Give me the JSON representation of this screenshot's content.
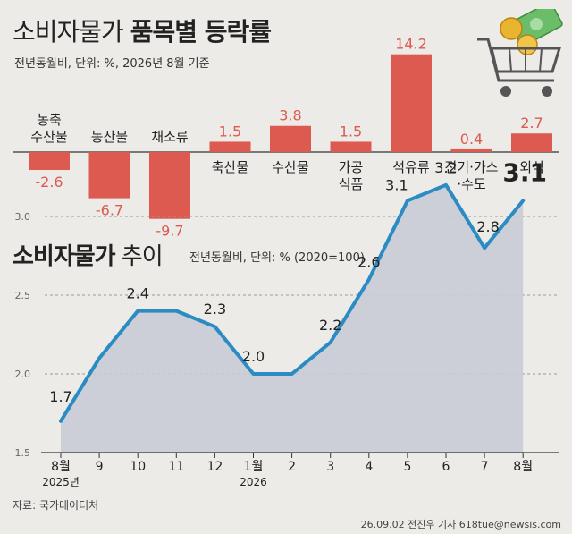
{
  "titles": {
    "main_light": "소비자물가",
    "main_bold": "품목별 등락률",
    "main_subtitle": "전년동월비, 단위: %, 2026년 8월 기준",
    "trend_bold": "소비자물가",
    "trend_light": "추이",
    "trend_subtitle": "전년동월비, 단위: % (2020=100)"
  },
  "source": "자료: 국가데이터처",
  "credit": "26.09.02 전진우 기자 618tue@newsis.com",
  "colors": {
    "bar": "#dd5a50",
    "line": "#2b8cc4",
    "area": "#c9ccd6",
    "bg": "#ecebe8"
  },
  "icons": [
    "shopping-cart-icon",
    "coin-icon",
    "banknote-icon"
  ],
  "chart_data": [
    {
      "type": "bar",
      "title": "소비자물가 품목별 등락률",
      "categories": [
        [
          "농축",
          "수산물"
        ],
        [
          "농산물"
        ],
        [
          "채소류"
        ],
        [
          "축산물"
        ],
        [
          "수산물"
        ],
        [
          "가공",
          "식품"
        ],
        [
          "석유류"
        ],
        [
          "전기·가스",
          "·수도"
        ],
        [
          "외식"
        ]
      ],
      "values": [
        -2.6,
        -6.7,
        -9.7,
        1.5,
        3.8,
        1.5,
        14.2,
        0.4,
        2.7
      ],
      "value_labels": [
        "-2.6",
        "-6.7",
        "-9.7",
        "1.5",
        "3.8",
        "1.5",
        "14.2",
        "0.4",
        "2.7"
      ]
    },
    {
      "type": "area",
      "title": "소비자물가 추이",
      "x": [
        [
          "8월",
          "2025년"
        ],
        [
          "9"
        ],
        [
          "10"
        ],
        [
          "11"
        ],
        [
          "12"
        ],
        [
          "1월",
          "2026"
        ],
        [
          "2"
        ],
        [
          "3"
        ],
        [
          "4"
        ],
        [
          "5"
        ],
        [
          "6"
        ],
        [
          "7"
        ],
        [
          "8월"
        ]
      ],
      "values": [
        1.7,
        2.1,
        2.4,
        2.4,
        2.3,
        2.0,
        2.0,
        2.2,
        2.6,
        3.1,
        3.2,
        2.8,
        3.1
      ],
      "point_labels": [
        "1.7",
        null,
        "2.4",
        null,
        "2.3",
        "2.0",
        null,
        "2.2",
        "2.6",
        "3.1",
        "3.2",
        "2.8",
        "3.1"
      ],
      "yticks": [
        "1.5",
        "2.0",
        "2.5",
        "3.0"
      ],
      "ylim": [
        1.5,
        3.3
      ]
    }
  ]
}
